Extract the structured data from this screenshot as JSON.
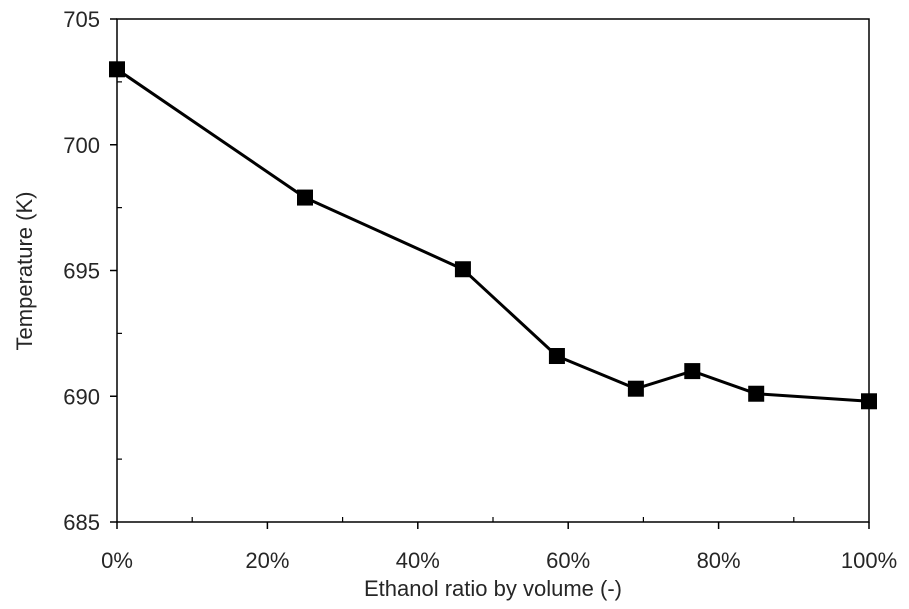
{
  "chart_data": {
    "type": "line",
    "title": "",
    "xlabel": "Ethanol ratio by volume (-)",
    "ylabel": "Temperature (K)",
    "xlim": [
      0,
      1
    ],
    "ylim": [
      685,
      705
    ],
    "x_ticks": [
      0,
      0.2,
      0.4,
      0.6,
      0.8,
      1.0
    ],
    "x_tick_labels": [
      "0%",
      "20%",
      "40%",
      "60%",
      "80%",
      "100%"
    ],
    "y_ticks": [
      685,
      690,
      695,
      700,
      705
    ],
    "y_tick_labels": [
      "685",
      "690",
      "695",
      "700",
      "705"
    ],
    "grid": false,
    "legend": "none",
    "series": [
      {
        "marker": "square",
        "color": "#000000",
        "x": [
          0,
          0.25,
          0.46,
          0.585,
          0.69,
          0.765,
          0.85,
          1.0
        ],
        "y": [
          703.0,
          697.9,
          695.05,
          691.6,
          690.3,
          691.0,
          690.1,
          689.8
        ]
      }
    ]
  }
}
